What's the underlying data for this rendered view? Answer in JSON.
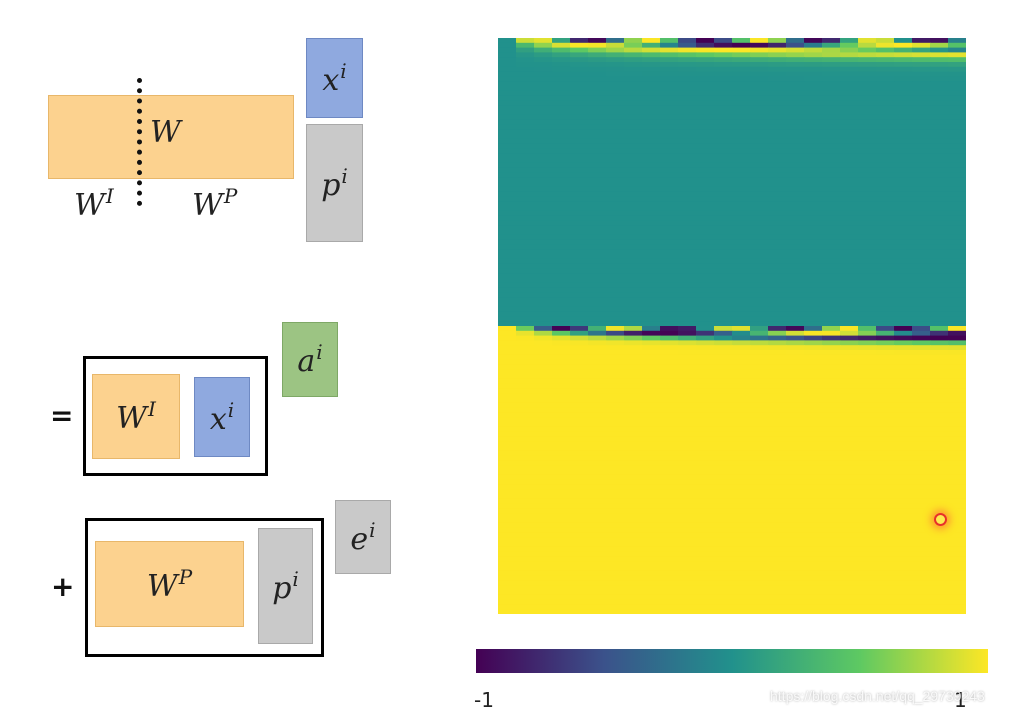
{
  "diagram": {
    "weight_matrix": {
      "label_base": "W"
    },
    "weight_input_part": {
      "label_base": "W",
      "label_sup": "I"
    },
    "weight_position_part": {
      "label_base": "W",
      "label_sup": "P"
    },
    "input_vector": {
      "label_base": "x",
      "label_sup": "i"
    },
    "position_vector": {
      "label_base": "p",
      "label_sup": "i"
    },
    "embedding_a": {
      "label_base": "a",
      "label_sup": "i"
    },
    "embedding_e": {
      "label_base": "e",
      "label_sup": "i"
    },
    "equals_sign": "=",
    "plus_sign": "+"
  },
  "heatmap": {
    "colorbar_min": "-1",
    "colorbar_max": "1",
    "value_range": [
      -1,
      1
    ],
    "colors": [
      "#440154",
      "#3b528b",
      "#21918c",
      "#5ec962",
      "#fde725"
    ],
    "rows_per_half": 60,
    "columns": 26
  },
  "watermark": "https://blog.csdn.net/qq_29739243"
}
